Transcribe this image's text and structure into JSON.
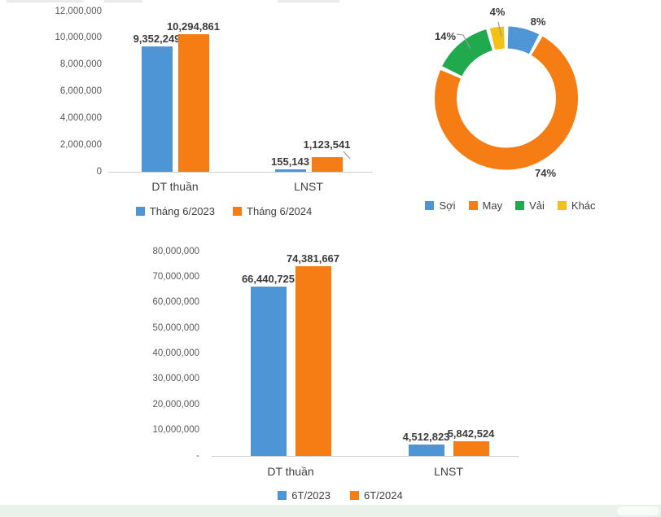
{
  "colors": {
    "blue": "#4e95d6",
    "orange": "#f57d13",
    "green": "#21a94e",
    "yellow": "#f2c114",
    "axis_line": "#cfcfcf",
    "tick_text": "#595959",
    "label_text": "#3b3b3b"
  },
  "chart_data": [
    {
      "id": "bars-thang6",
      "type": "bar",
      "categories": [
        "DT thuần",
        "LNST"
      ],
      "series": [
        {
          "name": "Tháng 6/2023",
          "color": "#4e95d6",
          "values": [
            9352249,
            155143
          ],
          "data_labels": [
            "9,352,249",
            "155,143"
          ]
        },
        {
          "name": "Tháng 6/2024",
          "color": "#f57d13",
          "values": [
            10294861,
            1123541
          ],
          "data_labels": [
            "10,294,861",
            "1,123,541"
          ]
        }
      ],
      "ylim": [
        0,
        12000000
      ],
      "grid": false,
      "legend_position": "bottom",
      "yticks": [
        {
          "v": 0,
          "label": "0"
        },
        {
          "v": 2000000,
          "label": "2,000,000"
        },
        {
          "v": 4000000,
          "label": "4,000,000"
        },
        {
          "v": 6000000,
          "label": "6,000,000"
        },
        {
          "v": 8000000,
          "label": "8,000,000"
        },
        {
          "v": 10000000,
          "label": "10,000,000"
        },
        {
          "v": 12000000,
          "label": "12,000,000"
        }
      ]
    },
    {
      "id": "donut-structure",
      "type": "pie",
      "donut": true,
      "start_angle_deg": 0,
      "direction": "clockwise",
      "slices": [
        {
          "name": "Sợi",
          "pct": 8,
          "label": "8%",
          "color": "#4e95d6"
        },
        {
          "name": "May",
          "pct": 74,
          "label": "74%",
          "color": "#f57d13"
        },
        {
          "name": "Vải",
          "pct": 14,
          "label": "14%",
          "color": "#21a94e"
        },
        {
          "name": "Khác",
          "pct": 4,
          "label": "4%",
          "color": "#f2c114"
        }
      ],
      "legend_position": "bottom"
    },
    {
      "id": "bars-6t",
      "type": "bar",
      "categories": [
        "DT thuần",
        "LNST"
      ],
      "series": [
        {
          "name": "6T/2023",
          "color": "#4e95d6",
          "values": [
            66440725,
            4512823
          ],
          "data_labels": [
            "66,440,725",
            "4,512,823"
          ]
        },
        {
          "name": "6T/2024",
          "color": "#f57d13",
          "values": [
            74381667,
            5842524
          ],
          "data_labels": [
            "74,381,667",
            "5,842,524"
          ]
        }
      ],
      "ylim": [
        0,
        80000000
      ],
      "grid": false,
      "legend_position": "bottom",
      "yticks": [
        {
          "v": 0,
          "label": "-"
        },
        {
          "v": 10000000,
          "label": "10,000,000"
        },
        {
          "v": 20000000,
          "label": "20,000,000"
        },
        {
          "v": 30000000,
          "label": "30,000,000"
        },
        {
          "v": 40000000,
          "label": "40,000,000"
        },
        {
          "v": 50000000,
          "label": "50,000,000"
        },
        {
          "v": 60000000,
          "label": "60,000,000"
        },
        {
          "v": 70000000,
          "label": "70,000,000"
        },
        {
          "v": 80000000,
          "label": "80,000,000"
        }
      ]
    }
  ]
}
